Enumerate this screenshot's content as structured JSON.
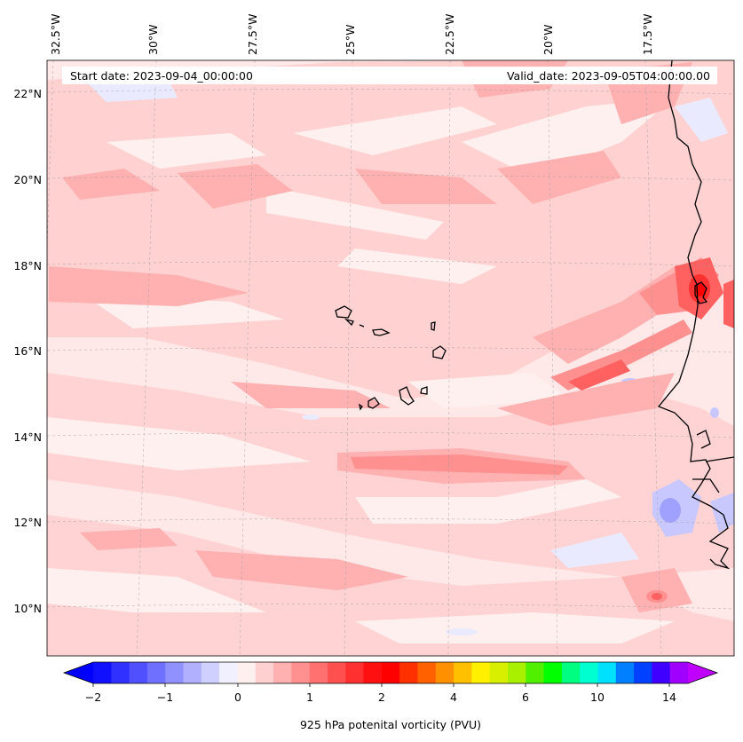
{
  "header": {
    "start_date": "Start date: 2023-09-04_00:00:00",
    "valid_date": "Valid_date: 2023-09-05T04:00:00.00"
  },
  "longitude_labels": [
    "32.5°W",
    "30°W",
    "27.5°W",
    "25°W",
    "22.5°W",
    "20°W",
    "17.5°W"
  ],
  "latitude_labels": [
    "22°N",
    "20°N",
    "18°N",
    "16°N",
    "14°N",
    "12°N",
    "10°N"
  ],
  "colorbar": {
    "label": "925 hPa potenital vorticity (PVU)",
    "tick_labels": [
      "−2",
      "−1",
      "0",
      "1",
      "2",
      "4",
      "6",
      "10",
      "14"
    ],
    "colors": [
      "#1010ff",
      "#3030ff",
      "#5050ff",
      "#7070ff",
      "#9090ff",
      "#b0b0ff",
      "#d0d0ff",
      "#f0f0ff",
      "#fff0f0",
      "#ffd0d0",
      "#ffb0b0",
      "#ff9090",
      "#ff7070",
      "#ff5050",
      "#ff3030",
      "#ff1010",
      "#ff0000",
      "#ff3000",
      "#ff6000",
      "#ff9000",
      "#ffc000",
      "#fff000",
      "#d8f000",
      "#a8f000",
      "#50f000",
      "#00ff00",
      "#00ff80",
      "#00ffd0",
      "#00e0ff",
      "#0080ff",
      "#0040ff",
      "#4000ff",
      "#a000ff"
    ],
    "under_color": "#0000ff",
    "over_color": "#c000ff"
  },
  "map": {
    "background_color": "#ffe8e8",
    "gridlines": "dashed-gray"
  }
}
